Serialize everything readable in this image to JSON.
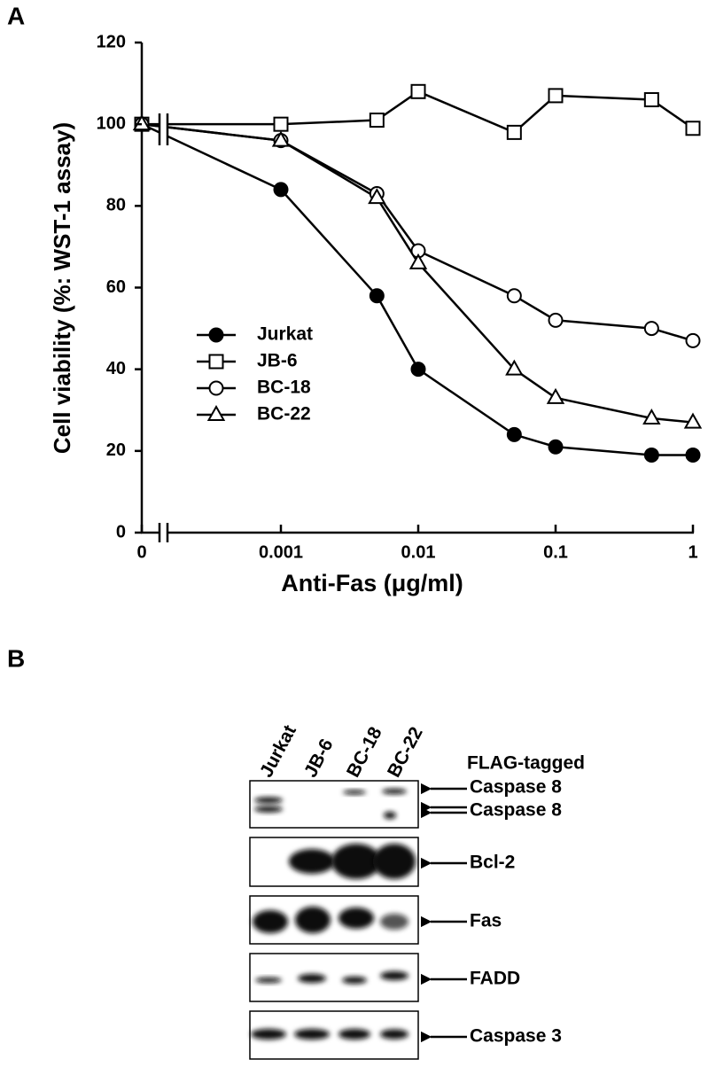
{
  "chart_data": {
    "type": "line",
    "panel_label": "A",
    "x_label": "Anti-Fas (μg/ml)",
    "y_label": "Cell viability (%: WST-1 assay)",
    "x": [
      0,
      0.001,
      0.005,
      0.01,
      0.05,
      0.1,
      0.5,
      1
    ],
    "xscale": "log",
    "axis_break": true,
    "xlim": [
      0,
      1
    ],
    "xticks": [
      0,
      0.001,
      0.01,
      0.1,
      1
    ],
    "ylim": [
      0,
      120
    ],
    "yticks": [
      0,
      20,
      40,
      60,
      80,
      100,
      120
    ],
    "series": [
      {
        "name": "Jurkat",
        "color": "#000000",
        "marker": "filled-circle",
        "values": [
          100,
          84,
          58,
          40,
          24,
          21,
          19,
          19
        ]
      },
      {
        "name": "JB-6",
        "color": "#000000",
        "marker": "open-square",
        "values": [
          100,
          100,
          101,
          108,
          98,
          107,
          106,
          99
        ]
      },
      {
        "name": "BC-18",
        "color": "#000000",
        "marker": "open-circle",
        "values": [
          100,
          96,
          83,
          69,
          58,
          52,
          50,
          47
        ]
      },
      {
        "name": "BC-22",
        "color": "#000000",
        "marker": "open-triangle",
        "values": [
          100,
          96,
          82,
          66,
          40,
          33,
          28,
          27
        ]
      }
    ]
  },
  "panel_b": {
    "label": "B",
    "lanes": [
      "Jurkat",
      "JB-6",
      "BC-18",
      "BC-22"
    ],
    "header": "FLAG-tagged",
    "rows": [
      "Caspase 8",
      "Caspase 8",
      "Bcl-2",
      "Fas",
      "FADD",
      "Caspase 3"
    ]
  }
}
